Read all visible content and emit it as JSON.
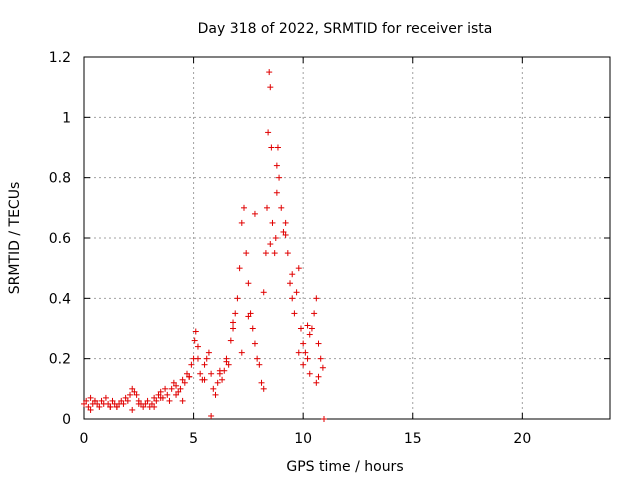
{
  "chart_data": {
    "type": "scatter",
    "title": "Day 318 of 2022, SRMTID for receiver ista",
    "xlabel": "GPS time / hours",
    "ylabel": "SRMTID / TECUs",
    "xlim": [
      0,
      24
    ],
    "ylim": [
      0,
      1.2
    ],
    "xticks": [
      0,
      5,
      10,
      15,
      20
    ],
    "xtick_labels": [
      "0",
      "5",
      "10",
      "15",
      "20"
    ],
    "yticks": [
      0,
      0.2,
      0.4,
      0.6,
      0.8,
      1.0,
      1.2
    ],
    "ytick_labels": [
      "0",
      "0.2",
      "0.4",
      "0.6",
      "0.8",
      "1",
      "1.2"
    ],
    "grid": true,
    "marker": "+",
    "color": "#e00000",
    "series": [
      {
        "name": "ista",
        "x": [
          0.0,
          0.1,
          0.2,
          0.3,
          0.4,
          0.5,
          0.6,
          0.7,
          0.8,
          0.9,
          1.0,
          1.1,
          1.2,
          1.3,
          1.4,
          1.5,
          1.6,
          1.7,
          1.8,
          1.9,
          2.0,
          2.1,
          2.2,
          2.3,
          2.4,
          2.5,
          2.6,
          2.7,
          2.8,
          2.9,
          3.0,
          3.1,
          3.2,
          3.3,
          3.4,
          3.5,
          3.6,
          3.7,
          3.8,
          3.9,
          4.0,
          4.1,
          4.2,
          4.3,
          4.4,
          4.5,
          4.6,
          4.7,
          4.8,
          4.9,
          5.0,
          5.05,
          5.1,
          5.2,
          5.3,
          5.4,
          5.5,
          5.6,
          5.7,
          5.8,
          5.9,
          6.0,
          6.1,
          6.2,
          6.3,
          6.4,
          6.5,
          6.6,
          6.7,
          6.8,
          6.9,
          7.0,
          7.1,
          7.2,
          7.3,
          7.4,
          7.5,
          7.6,
          7.7,
          7.8,
          7.9,
          8.0,
          8.1,
          8.2,
          8.3,
          8.35,
          8.4,
          8.45,
          8.5,
          8.55,
          8.6,
          8.7,
          8.75,
          8.8,
          8.85,
          8.9,
          9.0,
          9.1,
          9.2,
          9.3,
          9.4,
          9.5,
          9.6,
          9.7,
          9.8,
          9.9,
          10.0,
          10.1,
          10.2,
          10.3,
          10.4,
          10.5,
          10.6,
          10.7,
          10.8,
          10.9,
          10.0,
          10.3,
          10.6,
          0.5,
          1.5,
          2.5,
          3.5,
          4.5,
          5.5,
          6.5,
          7.5,
          8.5,
          9.5,
          4.2,
          4.8,
          5.2,
          6.2,
          6.8,
          7.2,
          7.8,
          8.2,
          8.8,
          9.2,
          9.8,
          10.2,
          10.7,
          0.3,
          1.2,
          2.2,
          3.2,
          5.8,
          10.95
        ],
        "y": [
          0.05,
          0.06,
          0.04,
          0.07,
          0.05,
          0.06,
          0.05,
          0.04,
          0.06,
          0.05,
          0.07,
          0.05,
          0.04,
          0.06,
          0.05,
          0.04,
          0.05,
          0.06,
          0.05,
          0.07,
          0.06,
          0.08,
          0.1,
          0.09,
          0.08,
          0.06,
          0.05,
          0.04,
          0.05,
          0.06,
          0.04,
          0.05,
          0.07,
          0.06,
          0.08,
          0.09,
          0.07,
          0.1,
          0.08,
          0.06,
          0.1,
          0.12,
          0.11,
          0.09,
          0.1,
          0.13,
          0.12,
          0.15,
          0.14,
          0.18,
          0.2,
          0.26,
          0.29,
          0.2,
          0.15,
          0.13,
          0.18,
          0.2,
          0.22,
          0.15,
          0.1,
          0.08,
          0.12,
          0.15,
          0.13,
          0.16,
          0.2,
          0.18,
          0.26,
          0.3,
          0.35,
          0.4,
          0.5,
          0.65,
          0.7,
          0.55,
          0.45,
          0.35,
          0.3,
          0.25,
          0.2,
          0.18,
          0.12,
          0.1,
          0.55,
          0.7,
          0.95,
          1.15,
          1.1,
          0.9,
          0.65,
          0.55,
          0.6,
          0.75,
          0.9,
          0.8,
          0.7,
          0.62,
          0.65,
          0.55,
          0.45,
          0.4,
          0.35,
          0.42,
          0.5,
          0.3,
          0.25,
          0.22,
          0.2,
          0.28,
          0.3,
          0.35,
          0.4,
          0.25,
          0.2,
          0.17,
          0.18,
          0.15,
          0.12,
          0.06,
          0.04,
          0.05,
          0.07,
          0.06,
          0.13,
          0.19,
          0.34,
          0.58,
          0.48,
          0.08,
          0.14,
          0.24,
          0.16,
          0.32,
          0.22,
          0.68,
          0.42,
          0.84,
          0.61,
          0.22,
          0.31,
          0.14,
          0.03,
          0.04,
          0.03,
          0.04,
          0.01,
          0.0
        ]
      }
    ]
  }
}
